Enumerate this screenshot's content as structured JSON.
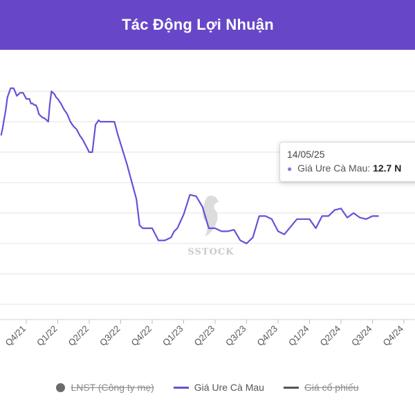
{
  "header": {
    "title": "Tác Động Lợi Nhuận"
  },
  "tooltip": {
    "date": "14/05/25",
    "series_label": "Giá Ure Cà Mau:",
    "value": "12.7 N"
  },
  "watermark": "SSTOCK",
  "legend": [
    {
      "label": "LNST (Công ty mẹ)",
      "color": "#6b6b6b",
      "hidden": true
    },
    {
      "label": "Giá Ure Cà Mau",
      "color": "#6a4fd8",
      "hidden": false
    },
    {
      "label": "Giá cổ phiếu",
      "color": "#555555",
      "hidden": true
    }
  ],
  "chart_data": {
    "type": "line",
    "categories": [
      "Q4/21",
      "Q1/22",
      "Q2/22",
      "Q3/22",
      "Q4/22",
      "Q1/23",
      "Q2/23",
      "Q3/23",
      "Q4/23",
      "Q1/24",
      "Q2/24",
      "Q3/24",
      "Q4/24"
    ],
    "series": [
      {
        "name": "Giá Ure Cà Mau",
        "color": "#6a4fd8",
        "x": [
          0.0,
          0.05,
          0.1,
          0.15,
          0.2,
          0.3,
          0.4,
          0.5,
          0.6,
          0.7,
          0.8,
          0.85,
          0.9,
          0.95,
          1.0,
          1.05,
          1.1,
          1.15,
          1.2,
          1.3,
          1.4,
          1.5,
          1.55,
          1.6,
          1.65,
          1.7,
          1.75,
          1.8,
          1.9,
          2.0,
          2.1,
          2.2,
          2.3,
          2.4,
          2.5,
          2.6,
          2.7,
          2.8,
          2.9,
          3.0,
          3.1,
          3.15,
          3.2,
          3.5,
          3.6,
          3.7,
          4.0,
          4.3,
          4.4,
          4.5,
          4.6,
          4.7,
          4.8,
          5.0,
          5.2,
          5.4,
          5.5,
          5.6,
          5.8,
          6.0,
          6.2,
          6.4,
          6.6,
          6.8,
          7.0,
          7.2,
          7.4,
          7.6,
          7.8,
          8.0,
          8.2,
          8.4,
          8.6,
          8.8,
          9.0,
          9.2,
          9.4,
          9.6,
          9.8,
          10.0,
          10.2,
          10.4,
          10.6,
          10.8,
          11.0,
          11.2,
          11.4,
          11.6,
          11.8,
          12.0
        ],
        "y": [
          19.1,
          19.6,
          20.2,
          20.8,
          21.6,
          22.2,
          22.2,
          21.7,
          21.9,
          21.9,
          21.5,
          21.5,
          21.5,
          21.2,
          21.2,
          21.1,
          21.1,
          20.9,
          20.5,
          20.3,
          20.2,
          20.0,
          21.2,
          22.0,
          21.9,
          21.8,
          21.6,
          21.5,
          21.2,
          20.8,
          20.5,
          20.0,
          19.7,
          19.5,
          19.1,
          18.8,
          18.4,
          18.0,
          18.0,
          19.8,
          20.1,
          20.0,
          20.0,
          20.0,
          20.0,
          19.2,
          17.2,
          14.9,
          13.2,
          13.0,
          13.0,
          13.0,
          13.0,
          12.2,
          12.2,
          12.4,
          12.8,
          13.0,
          13.9,
          15.2,
          15.1,
          14.4,
          13.0,
          13.0,
          12.8,
          12.8,
          12.9,
          12.2,
          12.0,
          12.4,
          13.8,
          13.8,
          13.6,
          12.8,
          12.6,
          13.1,
          13.6,
          13.6,
          13.6,
          13.0,
          13.8,
          13.8,
          14.2,
          14.3,
          13.7,
          14.0,
          13.7,
          13.6,
          13.8,
          13.8
        ]
      }
    ],
    "ylim": [
      7,
      24
    ],
    "grid": true,
    "legend_position": "bottom",
    "tooltip_point": {
      "date": "14/05/25",
      "value": 12.7
    }
  }
}
